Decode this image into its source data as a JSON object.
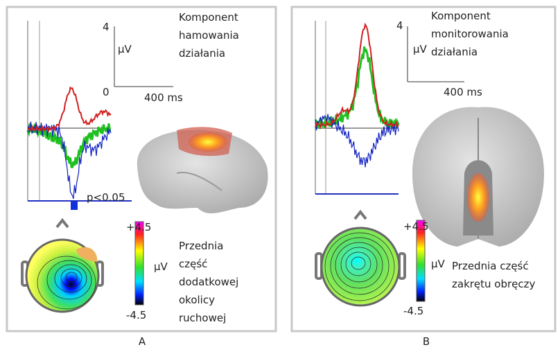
{
  "panels": [
    {
      "label": "A",
      "title_lines": [
        "Komponent",
        "hamowania",
        "działania"
      ],
      "scale": {
        "amplitude": "4",
        "unit": "µV",
        "zero": "0",
        "time": "400 ms"
      },
      "significance": "p<0.05",
      "colorbar": {
        "max": "+4.5",
        "min": "-4.5",
        "unit": "µV"
      },
      "region_lines": [
        "Przednia",
        "część",
        "dodatkowej",
        "okolicy",
        "ruchowej"
      ]
    },
    {
      "label": "B",
      "title_lines": [
        "Komponent",
        "monitorowania",
        "działania"
      ],
      "scale": {
        "amplitude": "4",
        "unit": "µV",
        "time": "400 ms"
      },
      "colorbar": {
        "max": "+4.5",
        "min": "-4.5",
        "unit": "µV"
      },
      "region_lines": [
        "Przednia część",
        "zakrętu obręczy"
      ]
    }
  ]
}
